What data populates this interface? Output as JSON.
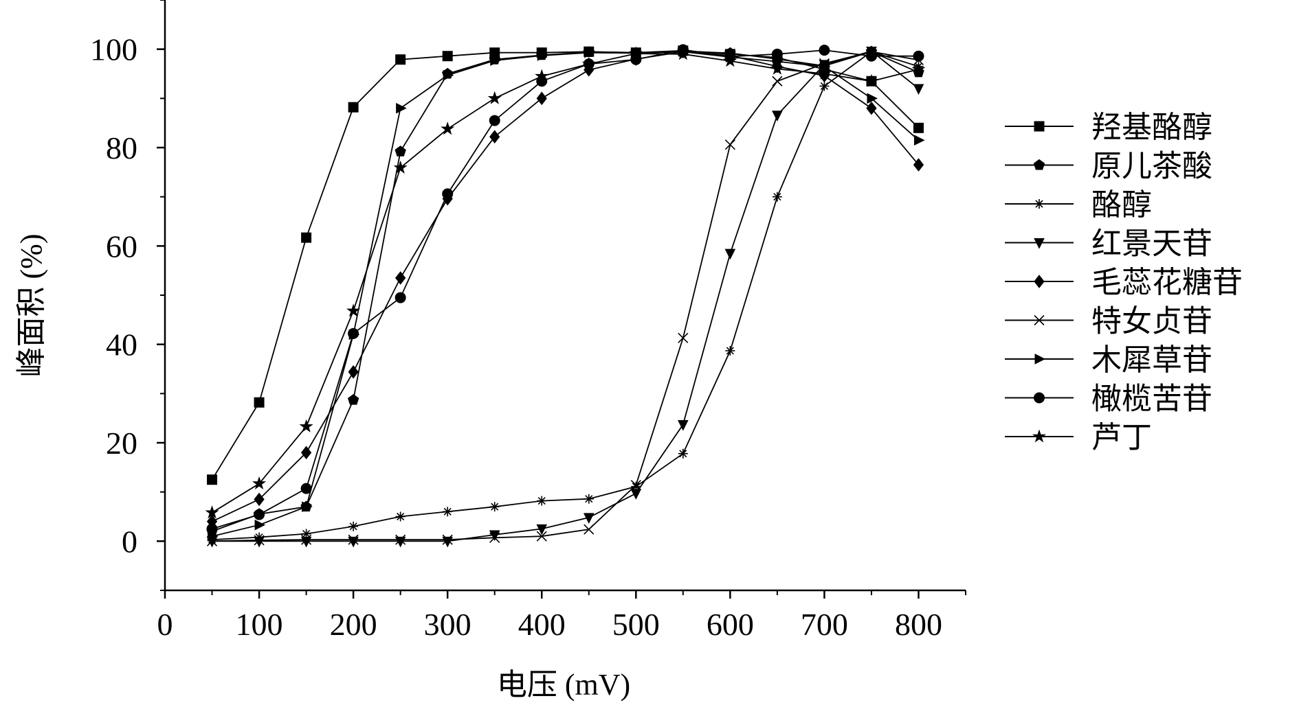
{
  "chart_data": {
    "type": "line",
    "title": "",
    "xlabel": "电压 (mV)",
    "ylabel": "峰面积 (%)",
    "xlim": [
      0,
      850
    ],
    "ylim": [
      -10,
      110
    ],
    "xticks": [
      0,
      100,
      200,
      300,
      400,
      500,
      600,
      700,
      800
    ],
    "yticks": [
      0,
      20,
      40,
      60,
      80,
      100
    ],
    "x": [
      50,
      100,
      150,
      200,
      250,
      300,
      350,
      400,
      450,
      500,
      550,
      600,
      650,
      700,
      750,
      800
    ],
    "legend_position": "right",
    "grid": false,
    "series": [
      {
        "name": "羟基酪醇",
        "marker": "square",
        "values": [
          12.5,
          28.2,
          61.7,
          88.2,
          97.9,
          98.6,
          99.3,
          99.3,
          99.5,
          99.3,
          99.7,
          99.0,
          98.3,
          95.9,
          93.5,
          84.0
        ]
      },
      {
        "name": "原儿茶酸",
        "marker": "pentagon",
        "values": [
          2.0,
          5.5,
          7.0,
          28.7,
          79.2,
          95.0,
          97.9,
          98.8,
          99.4,
          99.2,
          99.6,
          99.2,
          98.0,
          96.6,
          99.5,
          95.3
        ]
      },
      {
        "name": "酪醇",
        "marker": "asterisk",
        "values": [
          0.3,
          0.8,
          1.5,
          3.0,
          5.0,
          6.0,
          7.0,
          8.2,
          8.6,
          11.1,
          17.8,
          38.7,
          70.0,
          92.5,
          99.5,
          96.5
        ]
      },
      {
        "name": "红景天苷",
        "marker": "triangle-down",
        "values": [
          0.0,
          0.0,
          0.0,
          0.0,
          0.0,
          0.0,
          1.3,
          2.5,
          4.8,
          9.7,
          23.7,
          58.5,
          86.6,
          96.9,
          99.6,
          92.0
        ]
      },
      {
        "name": "毛蕊花糖苷",
        "marker": "diamond",
        "values": [
          4.0,
          8.5,
          18.0,
          34.4,
          53.5,
          69.6,
          82.2,
          90.0,
          95.8,
          98.0,
          99.5,
          98.7,
          96.5,
          94.6,
          88.0,
          76.5
        ]
      },
      {
        "name": "特女贞苷",
        "marker": "x",
        "values": [
          0.0,
          0.2,
          0.3,
          0.3,
          0.3,
          0.3,
          0.7,
          1.0,
          2.4,
          11.4,
          41.3,
          80.6,
          93.5,
          97.1,
          99.5,
          97.8
        ]
      },
      {
        "name": "木犀草苷",
        "marker": "triangle-right",
        "values": [
          1.0,
          3.3,
          7.0,
          42.0,
          88.0,
          94.7,
          97.7,
          98.7,
          99.3,
          99.2,
          99.5,
          98.4,
          97.5,
          96.5,
          90.0,
          81.5
        ]
      },
      {
        "name": "橄榄苦苷",
        "marker": "circle",
        "values": [
          2.5,
          5.4,
          10.7,
          42.2,
          49.5,
          70.6,
          85.5,
          93.5,
          97.0,
          97.9,
          99.9,
          98.5,
          99.0,
          99.8,
          98.6,
          98.6
        ]
      },
      {
        "name": "芦丁",
        "marker": "star",
        "values": [
          5.8,
          11.7,
          23.3,
          46.8,
          75.9,
          83.8,
          90.0,
          94.5,
          97.0,
          99.1,
          99.0,
          97.6,
          96.0,
          95.0,
          93.5,
          95.9
        ]
      }
    ]
  }
}
